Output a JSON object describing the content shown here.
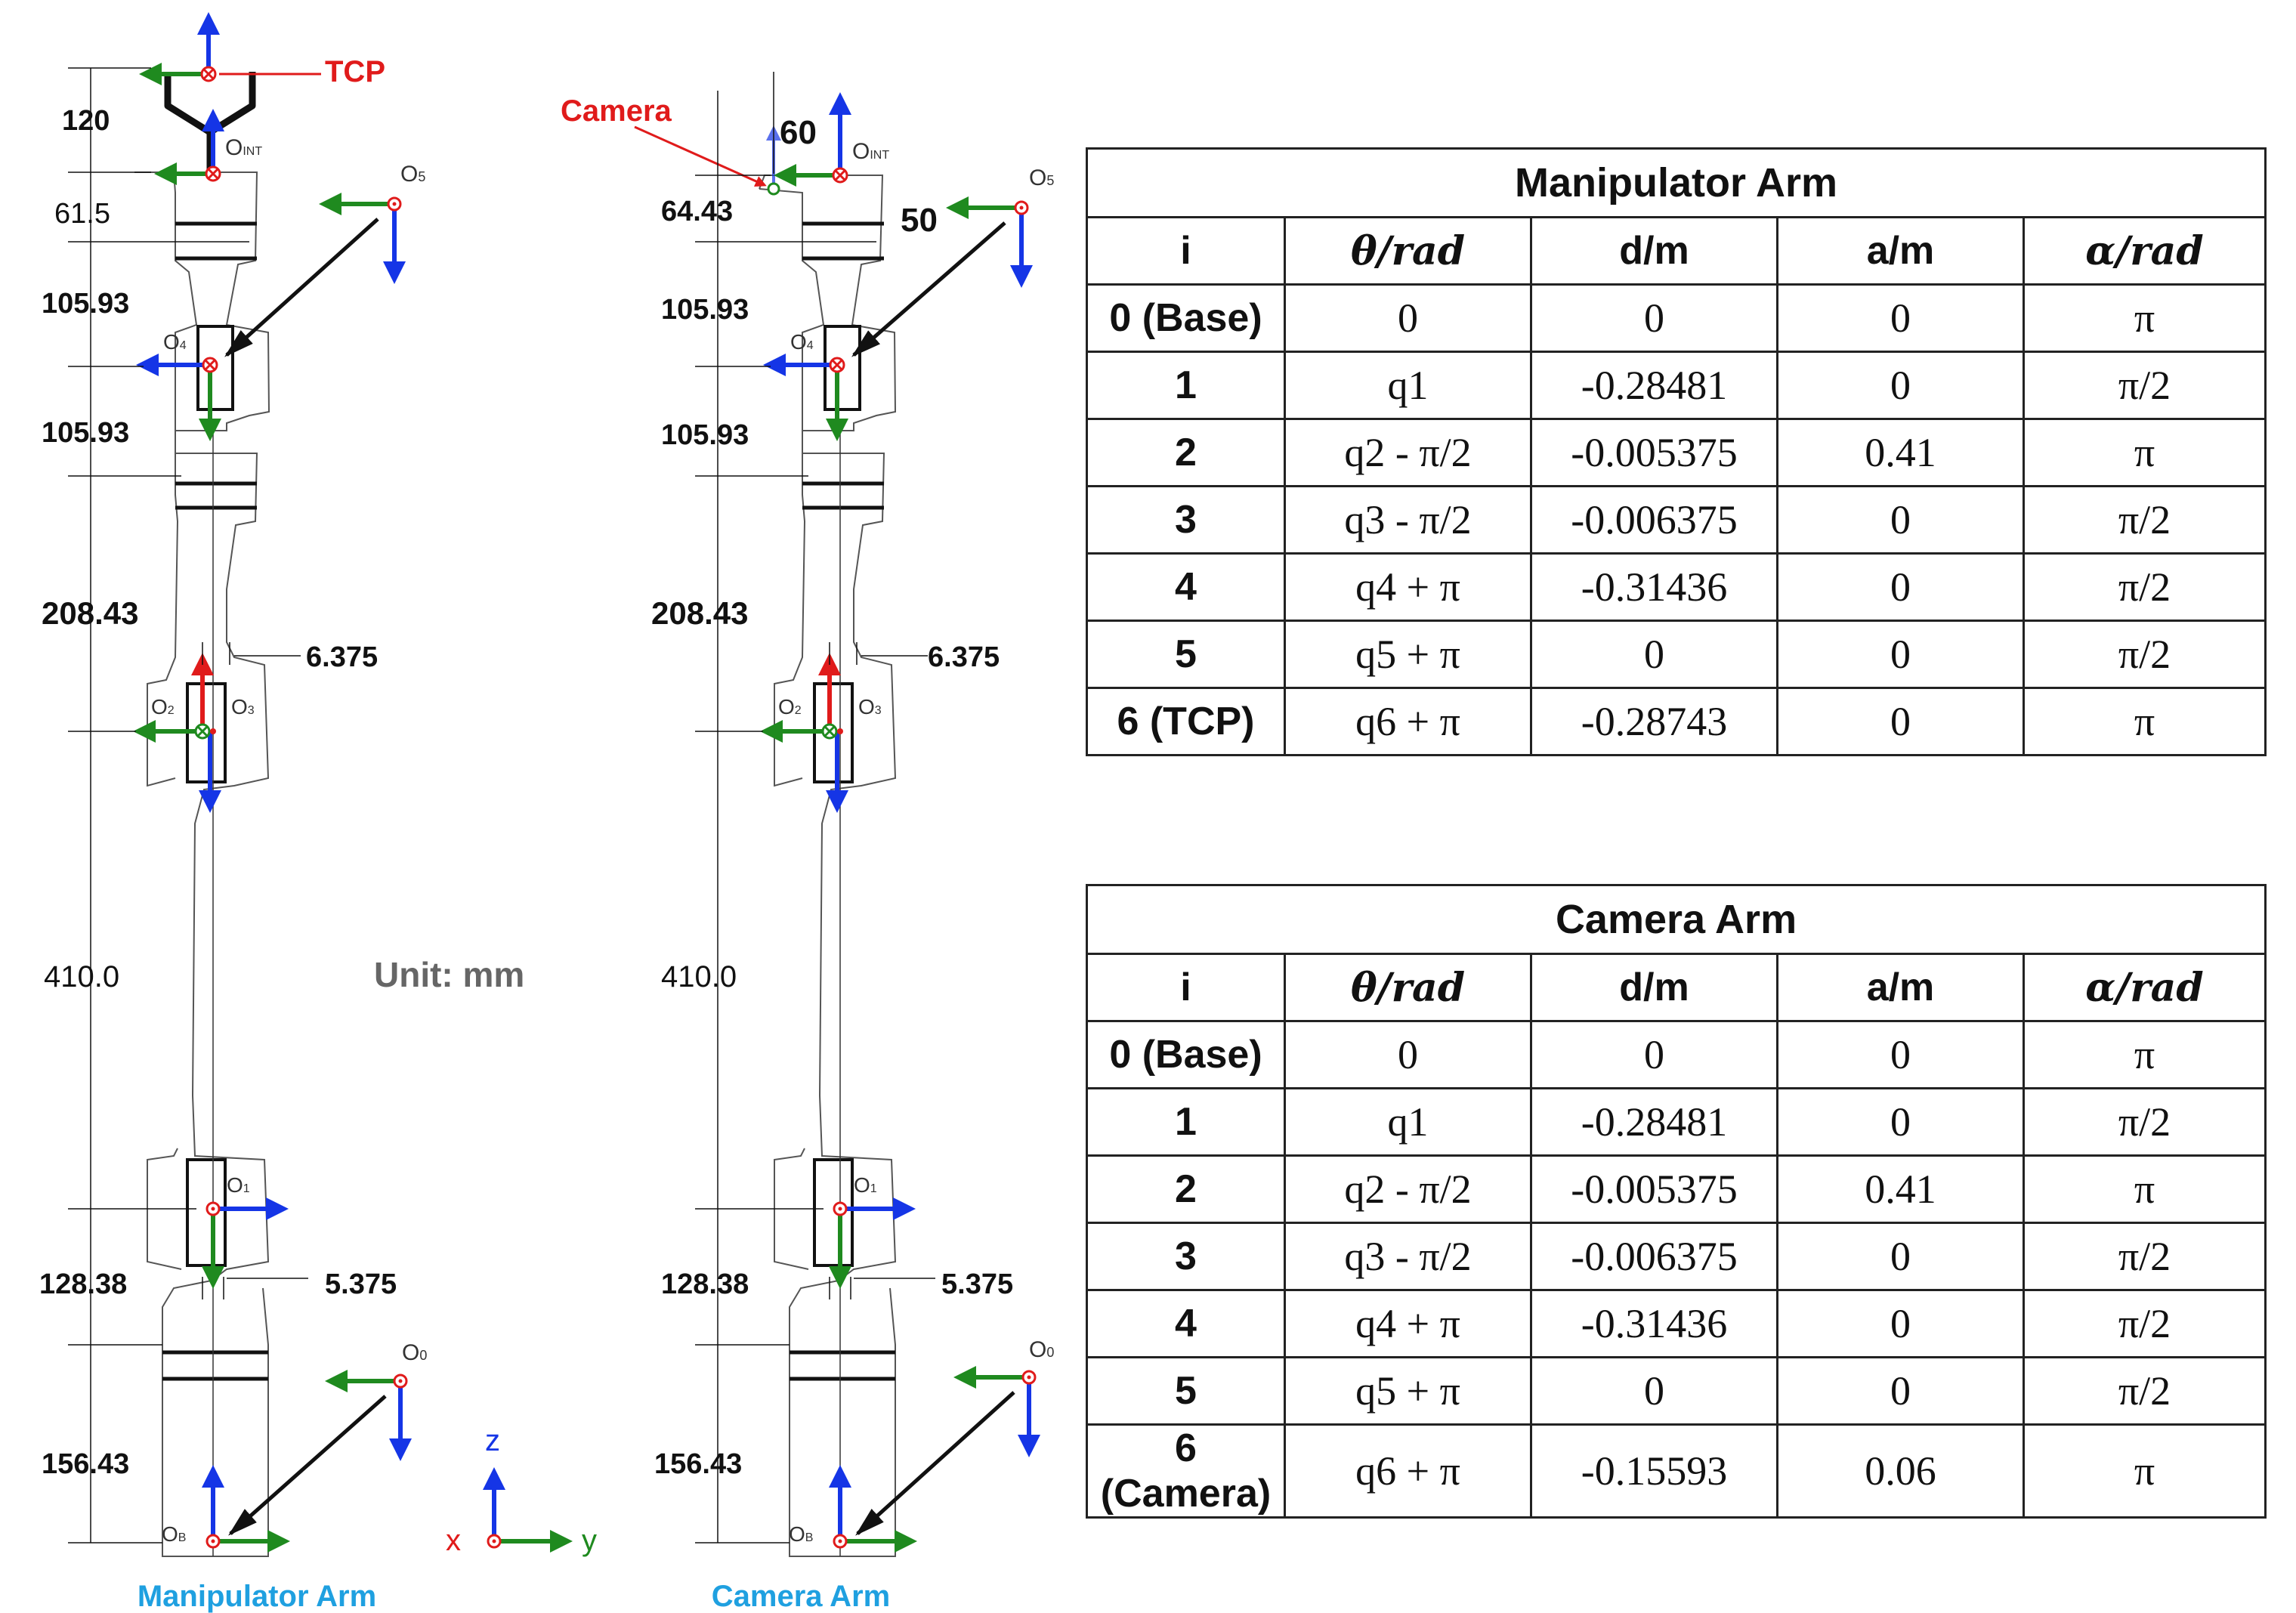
{
  "labels": {
    "tcp": "TCP",
    "camera": "Camera",
    "unit": "Unit: mm",
    "manip_caption": "Manipulator Arm",
    "camera_caption": "Camera Arm",
    "axis_x": "x",
    "axis_y": "y",
    "axis_z": "z",
    "o_int": "O",
    "o_int_sub": "INT",
    "o5": "O",
    "o5_sub": "5",
    "o4": "O",
    "o4_sub": "4",
    "o3": "O",
    "o3_sub": "3",
    "o2": "O",
    "o2_sub": "2",
    "o1": "O",
    "o1_sub": "1",
    "o0": "O",
    "o0_sub": "0",
    "ob": "O",
    "ob_sub": "B"
  },
  "manip_dims": [
    "120",
    "61.5",
    "105.93",
    "105.93",
    "208.43",
    "6.375",
    "410.0",
    "128.38",
    "5.375",
    "156.43"
  ],
  "camera_dims": [
    "60",
    "64.43",
    "50",
    "105.93",
    "105.93",
    "208.43",
    "6.375",
    "410.0",
    "128.38",
    "5.375",
    "156.43"
  ],
  "headers": {
    "i": "i",
    "theta": "θ/rad",
    "d": "d/m",
    "a": "a/m",
    "alpha": "α/rad"
  },
  "manip_table": {
    "title": "Manipulator Arm",
    "rows": [
      {
        "i": "0 (Base)",
        "theta": "0",
        "d": "0",
        "a": "0",
        "alpha": "π"
      },
      {
        "i": "1",
        "theta": "q1",
        "d": "-0.28481",
        "a": "0",
        "alpha": "π/2"
      },
      {
        "i": "2",
        "theta": "q2 - π/2",
        "d": "-0.005375",
        "a": "0.41",
        "alpha": "π"
      },
      {
        "i": "3",
        "theta": "q3 - π/2",
        "d": "-0.006375",
        "a": "0",
        "alpha": "π/2"
      },
      {
        "i": "4",
        "theta": "q4 + π",
        "d": "-0.31436",
        "a": "0",
        "alpha": "π/2"
      },
      {
        "i": "5",
        "theta": "q5 + π",
        "d": "0",
        "a": "0",
        "alpha": "π/2"
      },
      {
        "i": "6 (TCP)",
        "theta": "q6 + π",
        "d": "-0.28743",
        "a": "0",
        "alpha": "π"
      }
    ]
  },
  "camera_table": {
    "title": "Camera Arm",
    "rows": [
      {
        "i": "0 (Base)",
        "theta": "0",
        "d": "0",
        "a": "0",
        "alpha": "π"
      },
      {
        "i": "1",
        "theta": "q1",
        "d": "-0.28481",
        "a": "0",
        "alpha": "π/2"
      },
      {
        "i": "2",
        "theta": "q2 - π/2",
        "d": "-0.005375",
        "a": "0.41",
        "alpha": "π"
      },
      {
        "i": "3",
        "theta": "q3 - π/2",
        "d": "-0.006375",
        "a": "0",
        "alpha": "π/2"
      },
      {
        "i": "4",
        "theta": "q4 + π",
        "d": "-0.31436",
        "a": "0",
        "alpha": "π/2"
      },
      {
        "i": "5",
        "theta": "q5 + π",
        "d": "0",
        "a": "0",
        "alpha": "π/2"
      },
      {
        "i": "6 (Camera)",
        "theta": "q6 + π",
        "d": "-0.15593",
        "a": "0.06",
        "alpha": "π"
      }
    ]
  },
  "colors": {
    "red": "#e01b1b",
    "green": "#1f8a1f",
    "blue": "#1535e6",
    "caption": "#1fa0e0",
    "black": "#111111",
    "gray": "#666666"
  }
}
